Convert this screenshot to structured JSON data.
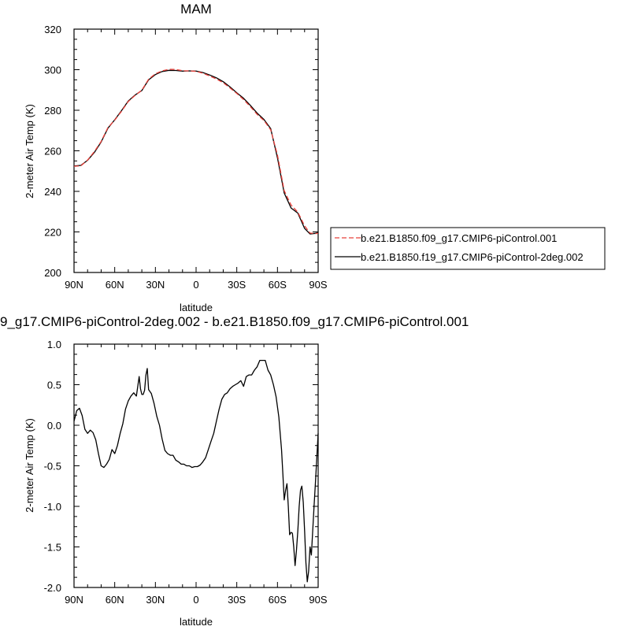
{
  "chart_data": [
    {
      "type": "line",
      "title": "MAM",
      "xlabel": "latitude",
      "ylabel": "2-meter Air Temp (K)",
      "xlim": [
        90,
        -90
      ],
      "ylim": [
        200,
        320
      ],
      "xticks": [
        90,
        60,
        30,
        0,
        -30,
        -60,
        -90
      ],
      "xtick_labels": [
        "90N",
        "60N",
        "30N",
        "0",
        "30S",
        "60S",
        "90S"
      ],
      "yticks": [
        200,
        220,
        240,
        260,
        280,
        300,
        320
      ],
      "ytick_labels": [
        "200",
        "220",
        "240",
        "260",
        "280",
        "300",
        "320"
      ],
      "legend_position": "right",
      "series": [
        {
          "name": "b.e21.B1850.f09_g17.CMIP6-piControl.001",
          "color": "#e8403a",
          "dash": "dashed",
          "x": [
            90,
            85,
            80,
            75,
            70,
            65,
            60,
            55,
            50,
            45,
            40,
            35,
            30,
            25,
            20,
            15,
            10,
            5,
            0,
            -5,
            -10,
            -15,
            -20,
            -25,
            -30,
            -35,
            -40,
            -45,
            -50,
            -55,
            -60,
            -65,
            -70,
            -75,
            -80,
            -84,
            -88,
            -90
          ],
          "y": [
            252.4,
            252.6,
            255.4,
            259.6,
            264.6,
            271.5,
            275.1,
            279.5,
            284.3,
            287.3,
            289.9,
            295.3,
            298.0,
            299.4,
            300.2,
            300.1,
            299.5,
            299.4,
            299.2,
            298.3,
            296.9,
            295.4,
            293.6,
            291.0,
            288.3,
            285.3,
            281.8,
            278.0,
            275.0,
            270.4,
            258.0,
            240.3,
            233.3,
            229.7,
            223.0,
            219.4,
            219.2,
            219.3
          ]
        },
        {
          "name": "b.e21.B1850.f19_g17.CMIP6-piControl-2deg.002",
          "color": "#000000",
          "dash": "solid",
          "x": [
            90,
            85,
            80,
            75,
            70,
            65,
            60,
            55,
            50,
            45,
            40,
            35,
            30,
            25,
            20,
            15,
            10,
            5,
            0,
            -5,
            -10,
            -15,
            -20,
            -25,
            -30,
            -35,
            -40,
            -45,
            -50,
            -55,
            -60,
            -65,
            -70,
            -75,
            -80,
            -84,
            -88,
            -90
          ],
          "y": [
            252.5,
            252.8,
            255.3,
            259.2,
            264.3,
            271.2,
            275.3,
            279.8,
            284.6,
            287.5,
            289.7,
            295.0,
            297.6,
            299.1,
            299.7,
            299.6,
            299.3,
            299.4,
            299.3,
            298.6,
            297.4,
            296.0,
            294.1,
            291.5,
            288.6,
            285.9,
            282.4,
            278.6,
            275.5,
            271.0,
            256.6,
            239.2,
            231.8,
            229.3,
            221.7,
            219.0,
            219.3,
            219.6
          ]
        }
      ]
    },
    {
      "type": "line",
      "title": "9_g17.CMIP6-piControl-2deg.002 - b.e21.B1850.f09_g17.CMIP6-piControl.001",
      "xlabel": "latitude",
      "ylabel": "2-meter Air Temp (K)",
      "xlim": [
        90,
        -90
      ],
      "ylim": [
        -2.0,
        1.0
      ],
      "xticks": [
        90,
        60,
        30,
        0,
        -30,
        -60,
        -90
      ],
      "xtick_labels": [
        "90N",
        "60N",
        "30N",
        "0",
        "30S",
        "60S",
        "90S"
      ],
      "yticks": [
        -2.0,
        -1.5,
        -1.0,
        -0.5,
        0.0,
        0.5,
        1.0
      ],
      "ytick_labels": [
        "-2.0",
        "-1.5",
        "-1.0",
        "-0.5",
        "0.0",
        "0.5",
        "1.0"
      ],
      "series": [
        {
          "color": "#000000",
          "dash": "solid",
          "x": [
            90,
            88,
            86,
            84,
            82,
            80,
            78,
            76,
            74,
            72,
            70,
            68,
            66,
            64,
            62,
            60,
            58,
            56,
            54,
            52,
            50,
            48,
            46,
            44,
            42,
            41,
            40,
            39,
            38,
            37,
            36,
            35,
            33,
            31,
            29,
            27,
            25,
            23,
            21,
            19,
            17,
            15,
            13,
            11,
            9,
            7,
            5,
            3,
            1,
            -1,
            -3,
            -5,
            -7,
            -9,
            -11,
            -13,
            -15,
            -17,
            -19,
            -21,
            -23,
            -25,
            -27,
            -29,
            -31,
            -33,
            -35,
            -37,
            -39,
            -41,
            -43,
            -45,
            -47,
            -49,
            -51,
            -53,
            -55,
            -57,
            -59,
            -61,
            -63,
            -64,
            -65,
            -66,
            -67,
            -68,
            -69,
            -70,
            -71,
            -72,
            -73,
            -74,
            -75,
            -76,
            -77,
            -78,
            -79,
            -80,
            -81,
            -82,
            -83,
            -84,
            -85,
            -86,
            -87,
            -88,
            -89,
            -90
          ],
          "y": [
            0.05,
            0.18,
            0.21,
            0.12,
            -0.05,
            -0.1,
            -0.06,
            -0.09,
            -0.18,
            -0.35,
            -0.5,
            -0.52,
            -0.48,
            -0.42,
            -0.3,
            -0.35,
            -0.25,
            -0.1,
            0.02,
            0.2,
            0.3,
            0.36,
            0.4,
            0.36,
            0.6,
            0.45,
            0.38,
            0.38,
            0.43,
            0.62,
            0.7,
            0.44,
            0.39,
            0.27,
            0.11,
            0.0,
            -0.17,
            -0.31,
            -0.35,
            -0.37,
            -0.37,
            -0.43,
            -0.45,
            -0.48,
            -0.48,
            -0.5,
            -0.5,
            -0.52,
            -0.51,
            -0.51,
            -0.49,
            -0.45,
            -0.4,
            -0.3,
            -0.2,
            -0.1,
            0.05,
            0.2,
            0.32,
            0.38,
            0.4,
            0.45,
            0.48,
            0.5,
            0.52,
            0.55,
            0.48,
            0.6,
            0.62,
            0.62,
            0.68,
            0.72,
            0.8,
            0.8,
            0.8,
            0.68,
            0.62,
            0.5,
            0.35,
            0.1,
            -0.3,
            -0.6,
            -0.92,
            -0.8,
            -0.72,
            -1.0,
            -1.35,
            -1.32,
            -1.33,
            -1.5,
            -1.73,
            -1.55,
            -1.3,
            -1.0,
            -0.8,
            -0.75,
            -0.95,
            -1.3,
            -1.7,
            -1.93,
            -1.8,
            -1.5,
            -1.6,
            -1.3,
            -1.0,
            -0.7,
            -0.4,
            -0.1
          ]
        }
      ]
    }
  ]
}
